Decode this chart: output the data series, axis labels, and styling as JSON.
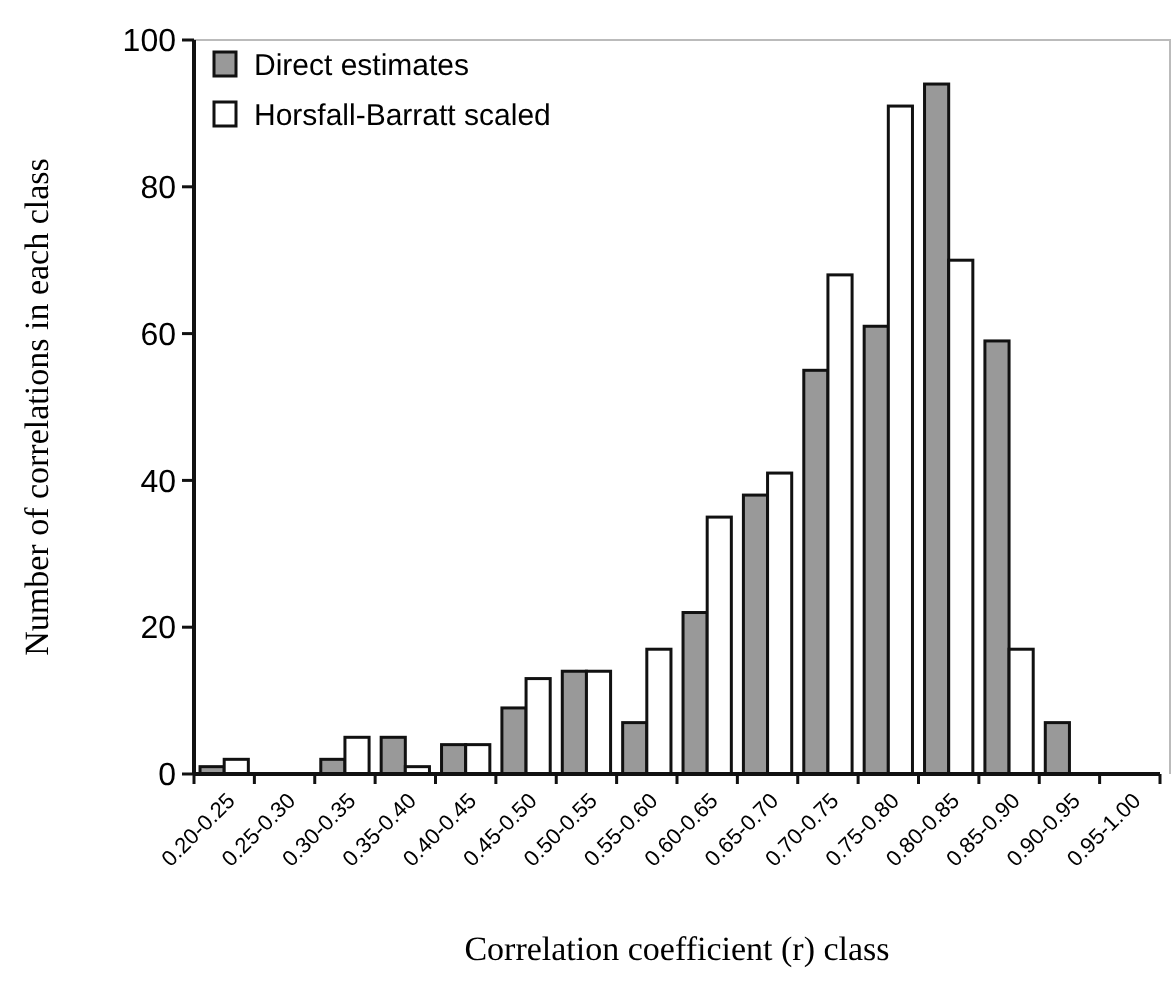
{
  "chart_data": {
    "type": "bar",
    "xlabel": "Correlation coefficient (r) class",
    "ylabel": "Number of correlations in each class",
    "categories": [
      "0.20-0.25",
      "0.25-0.30",
      "0.30-0.35",
      "0.35-0.40",
      "0.40-0.45",
      "0.45-0.50",
      "0.50-0.55",
      "0.55-0.60",
      "0.60-0.65",
      "0.65-0.70",
      "0.70-0.75",
      "0.75-0.80",
      "0.80-0.85",
      "0.85-0.90",
      "0.90-0.95",
      "0.95-1.00"
    ],
    "series": [
      {
        "name": "Direct estimates",
        "color": "#999999",
        "values": [
          1,
          0,
          2,
          5,
          4,
          9,
          14,
          7,
          22,
          38,
          55,
          61,
          94,
          59,
          7,
          0
        ]
      },
      {
        "name": "Horsfall-Barratt scaled",
        "color": "#ffffff",
        "values": [
          2,
          0,
          5,
          1,
          4,
          13,
          14,
          17,
          35,
          41,
          68,
          91,
          70,
          17,
          0,
          0
        ]
      }
    ],
    "ylim": [
      0,
      100
    ],
    "yticks": [
      0,
      20,
      40,
      60,
      80,
      100
    ],
    "grid": false,
    "legend": "top left"
  }
}
